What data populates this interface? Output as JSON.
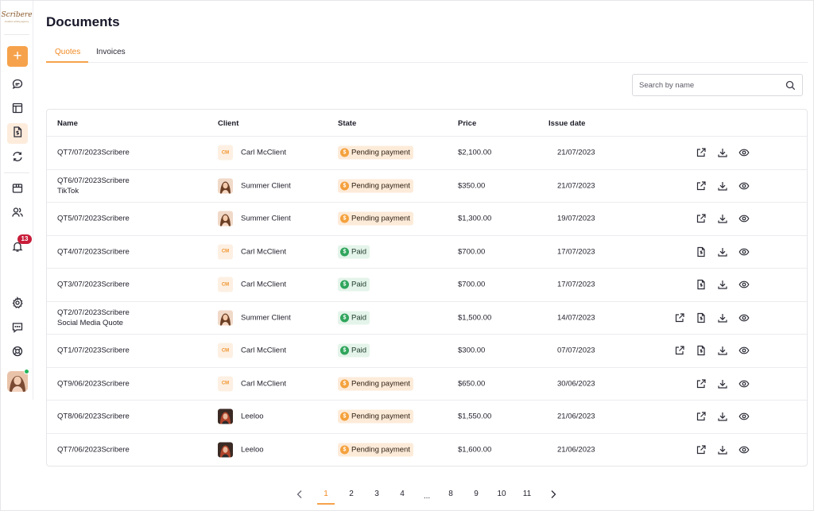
{
  "app": {
    "logo_text": "Scribere",
    "logo_sub": "creative writing agency"
  },
  "page": {
    "title": "Documents"
  },
  "tabs": [
    {
      "label": "Quotes",
      "active": true
    },
    {
      "label": "Invoices",
      "active": false
    }
  ],
  "search": {
    "placeholder": "Search by name",
    "value": ""
  },
  "notifications": {
    "count": "13"
  },
  "table": {
    "headers": {
      "name": "Name",
      "client": "Client",
      "state": "State",
      "price": "Price",
      "issue_date": "Issue date"
    },
    "rows": [
      {
        "name": "QT7/07/2023Scribere",
        "subtitle": "",
        "client": "Carl McClient",
        "initials": "CM",
        "avatar": "initials",
        "state": "Pending payment",
        "state_type": "pending",
        "price": "$2,100.00",
        "date": "21/07/2023",
        "actions": [
          "open",
          "download",
          "view"
        ]
      },
      {
        "name": "QT6/07/2023Scribere",
        "subtitle": "TikTok",
        "client": "Summer Client",
        "initials": "",
        "avatar": "summer",
        "state": "Pending payment",
        "state_type": "pending",
        "price": "$350.00",
        "date": "21/07/2023",
        "actions": [
          "open",
          "download",
          "view"
        ]
      },
      {
        "name": "QT5/07/2023Scribere",
        "subtitle": "",
        "client": "Summer Client",
        "initials": "",
        "avatar": "summer",
        "state": "Pending payment",
        "state_type": "pending",
        "price": "$1,300.00",
        "date": "19/07/2023",
        "actions": [
          "open",
          "download",
          "view"
        ]
      },
      {
        "name": "QT4/07/2023Scribere",
        "subtitle": "",
        "client": "Carl McClient",
        "initials": "CM",
        "avatar": "initials",
        "state": "Paid",
        "state_type": "paid",
        "price": "$700.00",
        "date": "17/07/2023",
        "actions": [
          "invoice",
          "download",
          "view"
        ]
      },
      {
        "name": "QT3/07/2023Scribere",
        "subtitle": "",
        "client": "Carl McClient",
        "initials": "CM",
        "avatar": "initials",
        "state": "Paid",
        "state_type": "paid",
        "price": "$700.00",
        "date": "17/07/2023",
        "actions": [
          "invoice",
          "download",
          "view"
        ]
      },
      {
        "name": "QT2/07/2023Scribere",
        "subtitle": "Social Media Quote",
        "client": "Summer Client",
        "initials": "",
        "avatar": "summer",
        "state": "Paid",
        "state_type": "paid",
        "price": "$1,500.00",
        "date": "14/07/2023",
        "actions": [
          "open",
          "invoice",
          "download",
          "view"
        ]
      },
      {
        "name": "QT1/07/2023Scribere",
        "subtitle": "",
        "client": "Carl McClient",
        "initials": "CM",
        "avatar": "initials",
        "state": "Paid",
        "state_type": "paid",
        "price": "$300.00",
        "date": "07/07/2023",
        "actions": [
          "open",
          "invoice",
          "download",
          "view"
        ]
      },
      {
        "name": "QT9/06/2023Scribere",
        "subtitle": "",
        "client": "Carl McClient",
        "initials": "CM",
        "avatar": "initials",
        "state": "Pending payment",
        "state_type": "pending",
        "price": "$650.00",
        "date": "30/06/2023",
        "actions": [
          "open",
          "download",
          "view"
        ]
      },
      {
        "name": "QT8/06/2023Scribere",
        "subtitle": "",
        "client": "Leeloo",
        "initials": "",
        "avatar": "leeloo",
        "state": "Pending payment",
        "state_type": "pending",
        "price": "$1,550.00",
        "date": "21/06/2023",
        "actions": [
          "open",
          "download",
          "view"
        ]
      },
      {
        "name": "QT7/06/2023Scribere",
        "subtitle": "",
        "client": "Leeloo",
        "initials": "",
        "avatar": "leeloo",
        "state": "Pending payment",
        "state_type": "pending",
        "price": "$1,600.00",
        "date": "21/06/2023",
        "actions": [
          "open",
          "download",
          "view"
        ]
      }
    ]
  },
  "pagination": {
    "pages": [
      "1",
      "2",
      "3",
      "4",
      "...",
      "8",
      "9",
      "10",
      "11"
    ],
    "current": "1"
  },
  "colors": {
    "accent": "#f6a24c",
    "pending_bg": "#fdebd9",
    "paid_bg": "#e4f4ea",
    "badge": "#c81d3a",
    "online": "#22b55b"
  }
}
